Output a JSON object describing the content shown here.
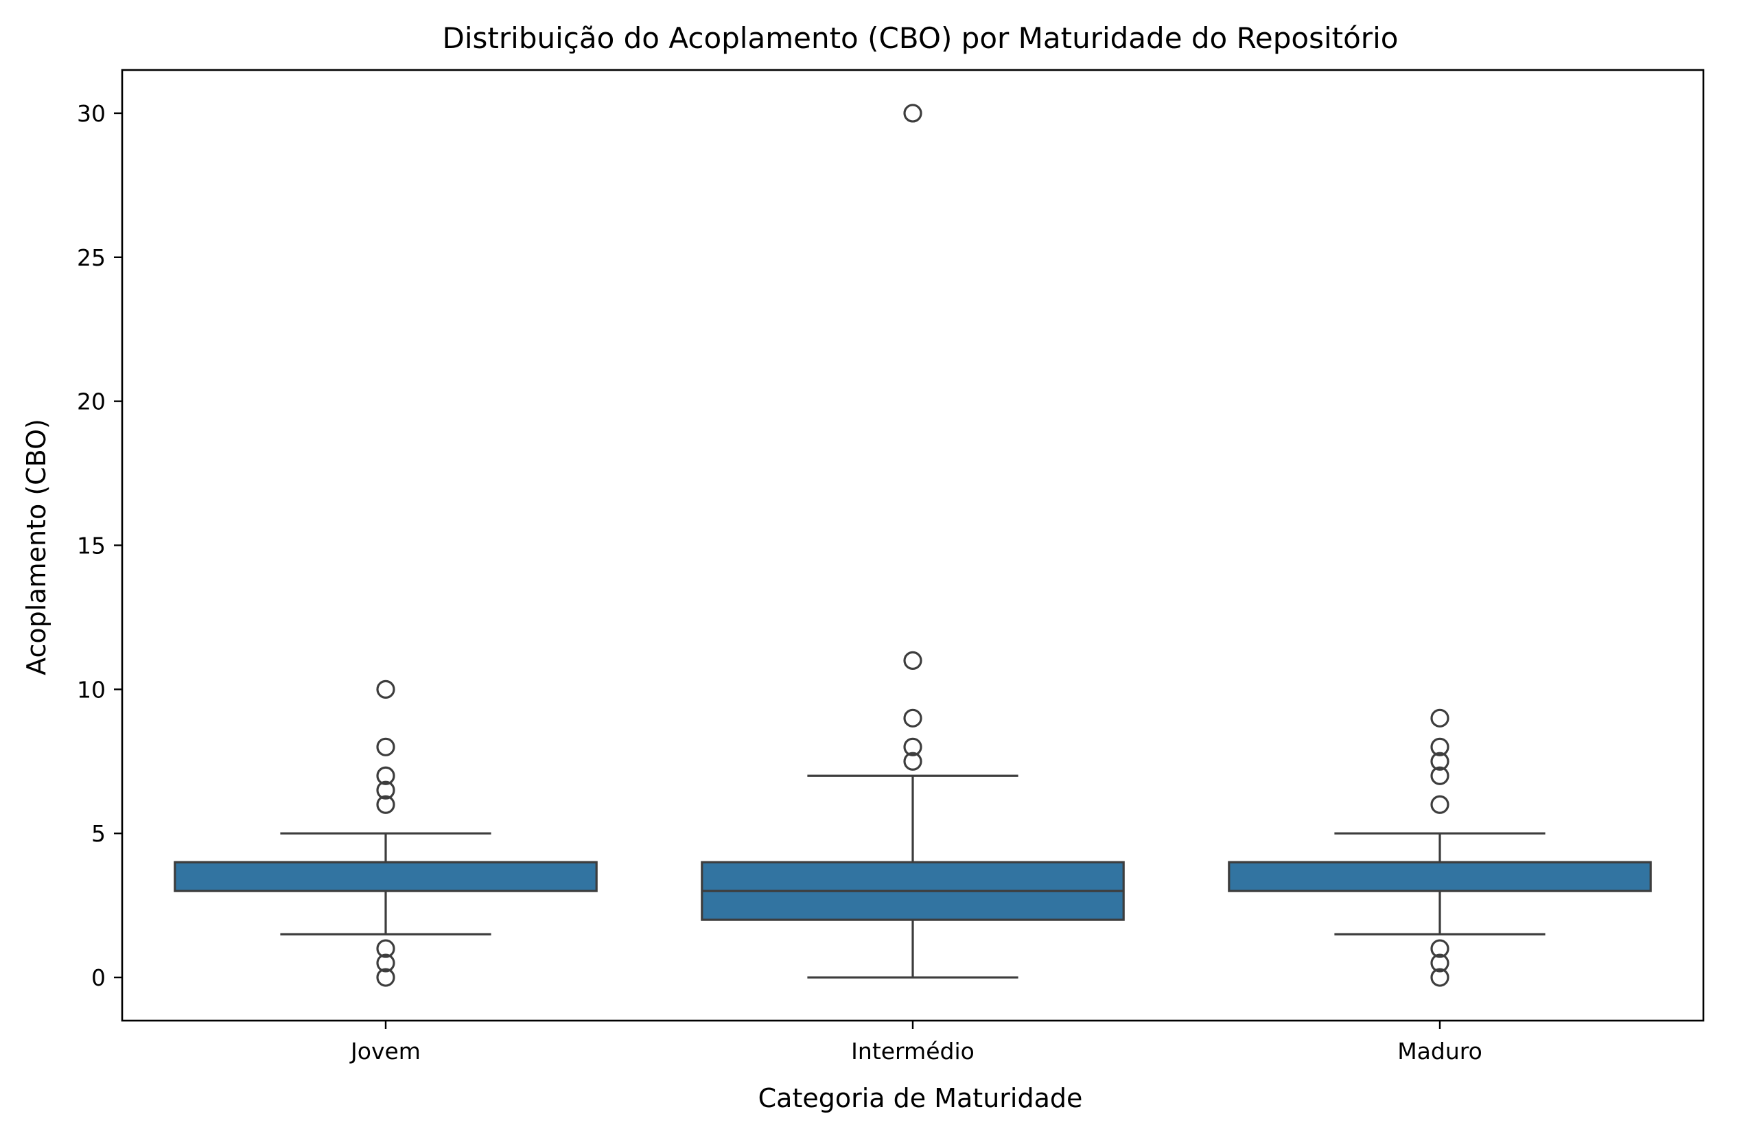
{
  "chart_data": {
    "type": "box",
    "title": "Distribuição do Acoplamento (CBO) por Maturidade do Repositório",
    "xlabel": "Categoria de Maturidade",
    "ylabel": "Acoplamento (CBO)",
    "ylim": [
      -1.5,
      31.5
    ],
    "yticks": [
      "0",
      "5",
      "10",
      "15",
      "20",
      "25",
      "30"
    ],
    "grid": false,
    "legend": "none",
    "box_color": "#3274a1",
    "line_color": "#3d3d3d",
    "categories": [
      "Jovem",
      "Intermédio",
      "Maduro"
    ],
    "boxes": [
      {
        "category": "Jovem",
        "whisker_low": 1.5,
        "q1": 3,
        "median": 4,
        "q3": 4,
        "whisker_high": 5,
        "outliers": [
          10,
          8,
          7,
          6.5,
          6,
          1,
          0.5,
          0
        ]
      },
      {
        "category": "Intermédio",
        "whisker_low": 0,
        "q1": 2,
        "median": 3,
        "q3": 4,
        "whisker_high": 7,
        "outliers": [
          30,
          11,
          9,
          8,
          7.5
        ]
      },
      {
        "category": "Maduro",
        "whisker_low": 1.5,
        "q1": 3,
        "median": 4,
        "q3": 4,
        "whisker_high": 5,
        "outliers": [
          9,
          8,
          7.5,
          7,
          6,
          1,
          0.5,
          0
        ]
      }
    ]
  }
}
